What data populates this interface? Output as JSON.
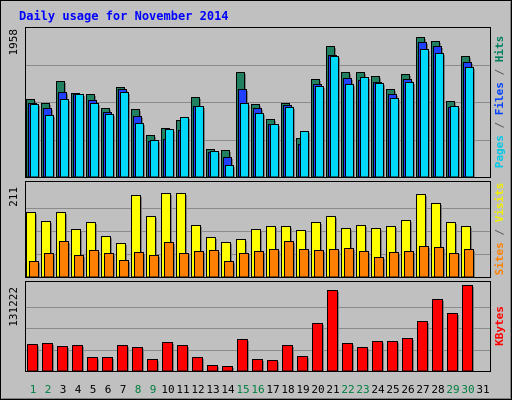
{
  "chart_data": {
    "type": "bar",
    "title": "Daily usage for November 2014",
    "categories": [
      "1",
      "2",
      "3",
      "4",
      "5",
      "6",
      "7",
      "8",
      "9",
      "10",
      "11",
      "12",
      "13",
      "14",
      "15",
      "16",
      "17",
      "18",
      "19",
      "20",
      "21",
      "22",
      "23",
      "24",
      "25",
      "26",
      "27",
      "28",
      "29",
      "30",
      "31"
    ],
    "weekend_days": [
      "1",
      "2",
      "8",
      "9",
      "15",
      "16",
      "22",
      "23",
      "29",
      "30"
    ],
    "panels": [
      {
        "name": "hits-files-pages",
        "max_label": "1958",
        "ylim": [
          0,
          1958
        ],
        "label_parts": [
          {
            "text": "Pages",
            "color": "#00c8e6"
          },
          {
            "text": " / ",
            "color": "#606060"
          },
          {
            "text": "Files",
            "color": "#0040ff"
          },
          {
            "text": " / ",
            "color": "#606060"
          },
          {
            "text": "Hits",
            "color": "#008060"
          }
        ],
        "series": [
          {
            "name": "Hits",
            "color": "#208060",
            "values": [
              1015,
              960,
              1248,
              1090,
              1085,
              898,
              1170,
              890,
              545,
              638,
              738,
              1045,
              368,
              348,
              1365,
              950,
              755,
              970,
              510,
              1285,
              1712,
              1367,
              1365,
              1315,
              1150,
              1340,
              1830,
              1780,
              990,
              1580
            ]
          },
          {
            "name": "Files",
            "color": "#2040ff",
            "values": [
              965,
              895,
              1112,
              1080,
              1002,
              845,
              1150,
              790,
              470,
              500,
              620,
              930,
              330,
              258,
              1153,
              898,
              695,
              935,
              425,
              1217,
              1590,
              1298,
              1260,
              1240,
              1085,
              1275,
              1760,
              1710,
              915,
              1500
            ]
          },
          {
            "name": "Pages",
            "color": "#00d8f8",
            "values": [
              948,
              808,
              1012,
              1082,
              960,
              820,
              1115,
              700,
              485,
              630,
              785,
              925,
              340,
              160,
              972,
              840,
              688,
              915,
              605,
              1190,
              1580,
              1215,
              1300,
              1230,
              1035,
              1235,
              1675,
              1622,
              930,
              1440
            ]
          }
        ]
      },
      {
        "name": "visits-sites",
        "max_label": "211",
        "ylim": [
          0,
          211
        ],
        "label_parts": [
          {
            "text": "Sites",
            "color": "#ff8000"
          },
          {
            "text": " / ",
            "color": "#606060"
          },
          {
            "text": "Visits",
            "color": "#f0f000"
          }
        ],
        "series": [
          {
            "name": "Visits",
            "color": "#ffff00",
            "values": [
              148,
              128,
              150,
              110,
              126,
              95,
              77,
              189,
              140,
              192,
              192,
              120,
              92,
              80,
              88,
              110,
              117,
              118,
              108,
              126,
              139,
              112,
              119,
              113,
              118,
              130,
              190,
              170,
              125,
              118
            ]
          },
          {
            "name": "Sites",
            "color": "#ff8000",
            "values": [
              36,
              55,
              82,
              50,
              63,
              56,
              38,
              58,
              50,
              80,
              56,
              60,
              62,
              37,
              55,
              60,
              64,
              82,
              64,
              61,
              65,
              67,
              60,
              47,
              57,
              60,
              70,
              68,
              55,
              65
            ]
          }
        ]
      },
      {
        "name": "kbytes",
        "max_label": "131222",
        "ylim": [
          0,
          131222
        ],
        "label_parts": [
          {
            "text": "KBytes",
            "color": "#ff0000"
          }
        ],
        "series": [
          {
            "name": "KBytes",
            "color": "#ff0000",
            "values": [
              41000,
              42000,
              38000,
              39000,
              21000,
              22000,
              40000,
              36000,
              18000,
              44000,
              40000,
              22000,
              9000,
              8000,
              49000,
              19000,
              17000,
              40000,
              23000,
              73000,
              124000,
              43000,
              36000,
              46000,
              46000,
              51000,
              76000,
              110000,
              88000,
              131222
            ]
          }
        ]
      }
    ],
    "grid": true,
    "legend": "right-vertical"
  }
}
